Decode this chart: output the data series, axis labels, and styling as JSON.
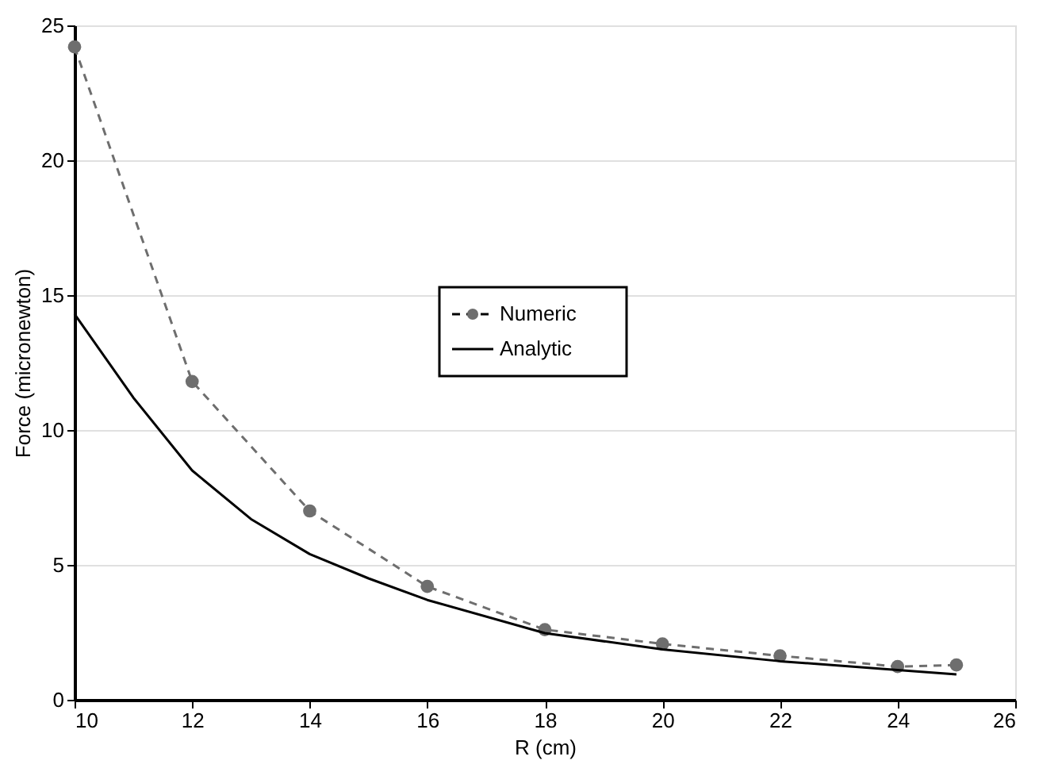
{
  "chart_data": {
    "type": "line",
    "xlabel": "R (cm)",
    "ylabel": "Force (micronewton)",
    "xlim": [
      10,
      26
    ],
    "xticks": [
      10,
      12,
      14,
      16,
      18,
      20,
      22,
      24,
      26
    ],
    "ylim": [
      0,
      25
    ],
    "yticks": [
      0,
      5,
      10,
      15,
      20,
      25
    ],
    "grid": "y",
    "legend": "center",
    "series": [
      {
        "name": "Numeric",
        "color": "#6e6e6e",
        "marker": "circle",
        "line_style": "dashed",
        "x": [
          10,
          12,
          14,
          16,
          18,
          20,
          22,
          24,
          25
        ],
        "values": [
          24.2,
          11.8,
          7.0,
          4.2,
          2.6,
          2.07,
          1.63,
          1.23,
          1.29
        ]
      },
      {
        "name": "Analytic",
        "color": "#000000",
        "marker": "none",
        "line_style": "solid",
        "x": [
          10,
          11,
          12,
          13,
          14,
          15,
          16,
          18,
          20,
          22,
          24,
          25
        ],
        "values": [
          14.3,
          11.2,
          8.5,
          6.7,
          5.4,
          4.5,
          3.7,
          2.47,
          1.87,
          1.43,
          1.1,
          0.94
        ]
      }
    ]
  }
}
